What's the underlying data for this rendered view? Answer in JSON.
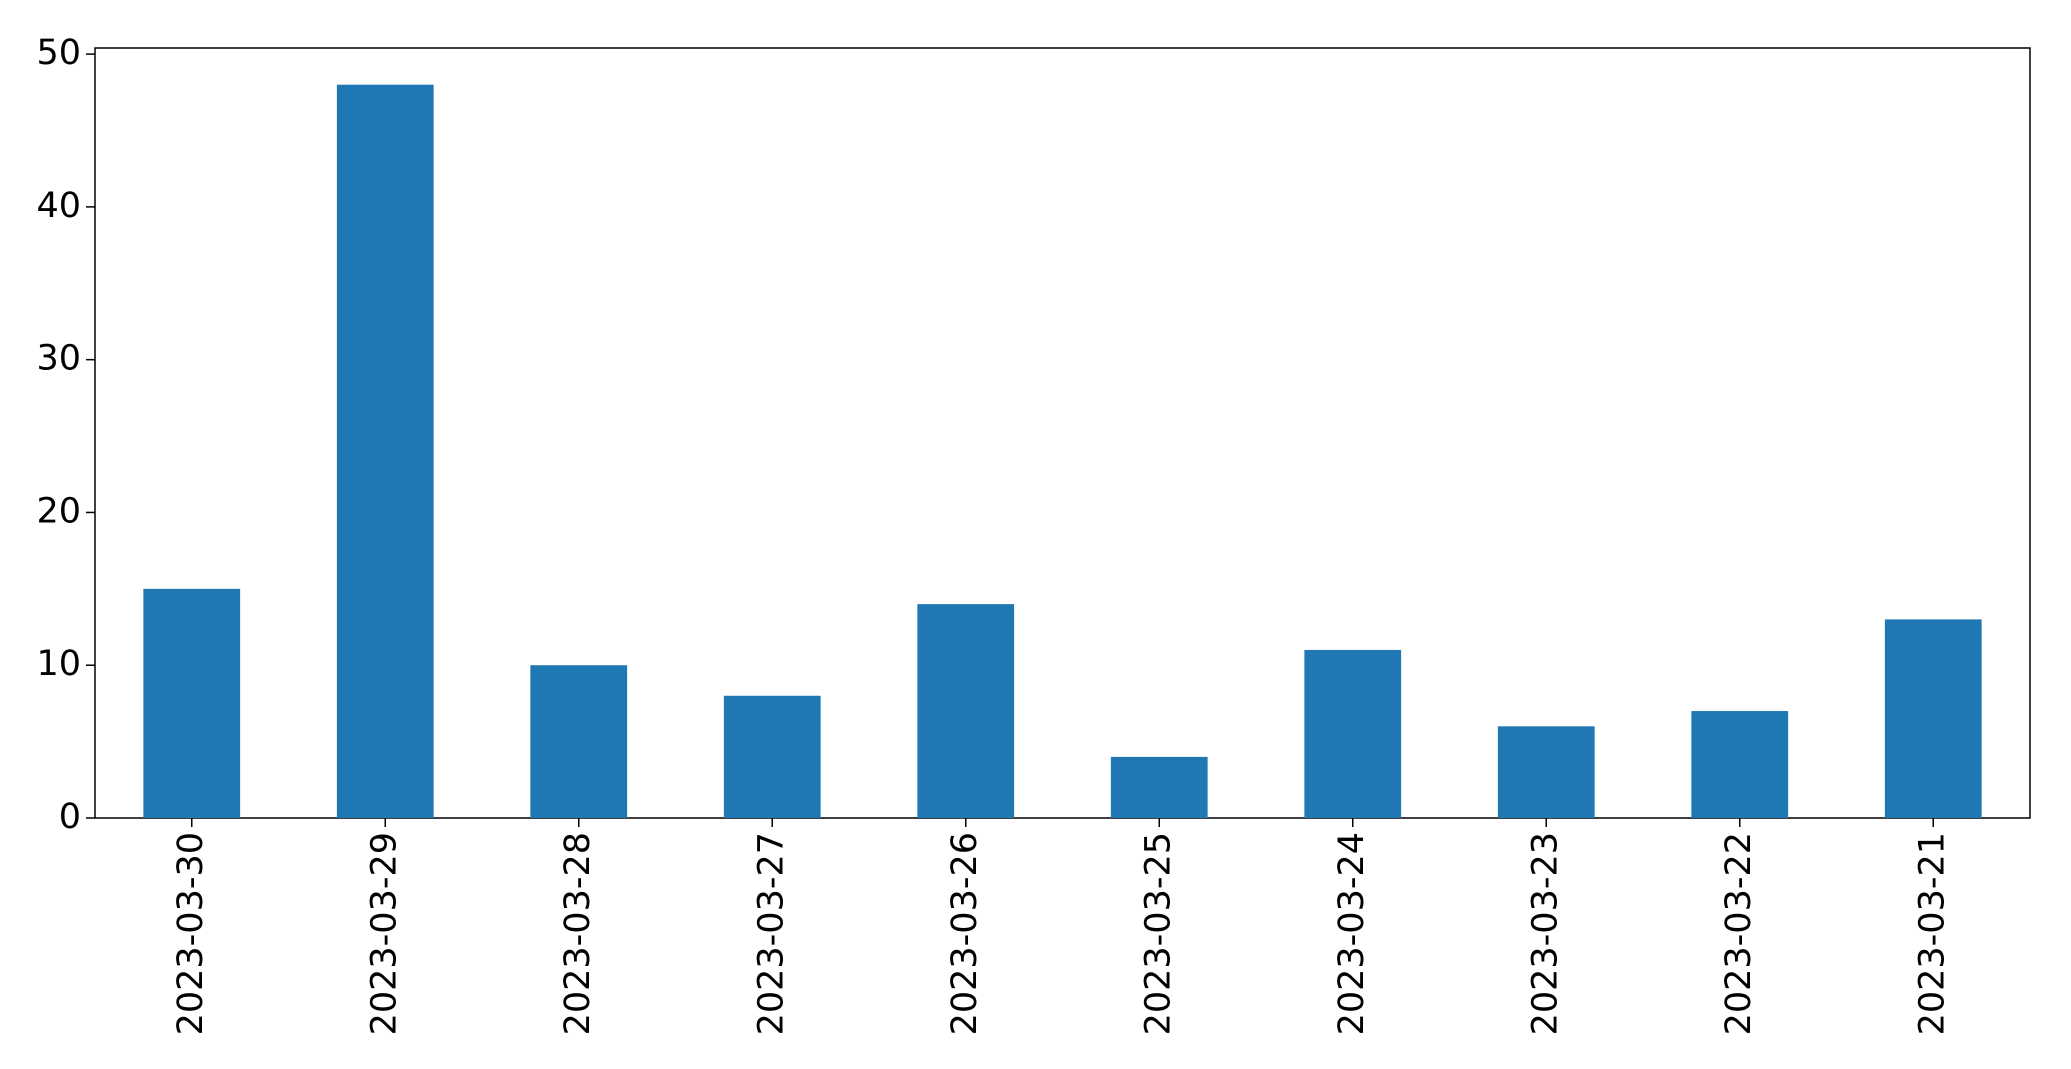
{
  "chart_data": {
    "type": "bar",
    "categories": [
      "2023-03-30",
      "2023-03-29",
      "2023-03-28",
      "2023-03-27",
      "2023-03-26",
      "2023-03-25",
      "2023-03-24",
      "2023-03-23",
      "2023-03-22",
      "2023-03-21"
    ],
    "values": [
      15,
      48,
      10,
      8,
      14,
      4,
      11,
      6,
      7,
      13
    ],
    "color": "#1f77b4",
    "ylim": [
      0,
      50.4
    ],
    "yticks": [
      0,
      10,
      20,
      30,
      40,
      50
    ],
    "grid": false
  }
}
